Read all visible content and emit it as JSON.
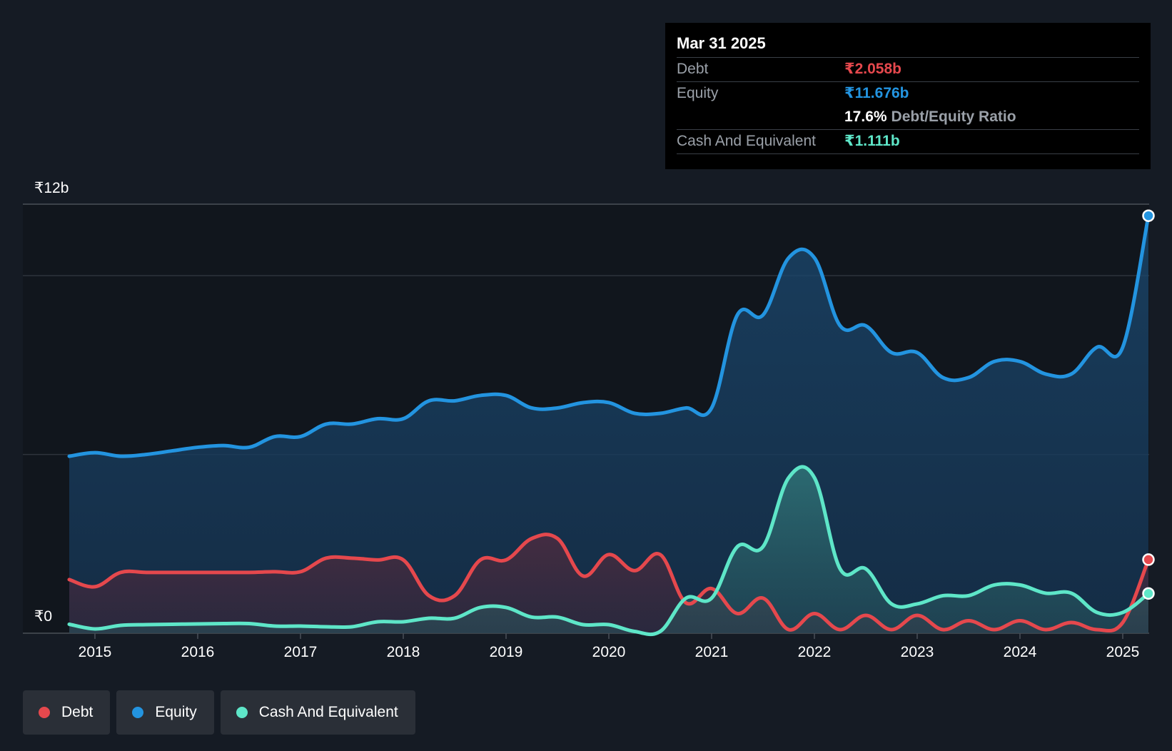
{
  "tooltip": {
    "date": "Mar 31 2025",
    "debt_label": "Debt",
    "debt_value": "₹2.058b",
    "equity_label": "Equity",
    "equity_value": "₹11.676b",
    "ratio_value": "17.6%",
    "ratio_label": "Debt/Equity Ratio",
    "cash_label": "Cash And Equivalent",
    "cash_value": "₹1.111b"
  },
  "legend": [
    {
      "label": "Debt",
      "color": "#e5484d"
    },
    {
      "label": "Equity",
      "color": "#2394e0"
    },
    {
      "label": "Cash And Equivalent",
      "color": "#5ee6c8"
    }
  ],
  "chart_data": {
    "type": "area",
    "title": "",
    "xlabel": "",
    "ylabel": "",
    "y_top_label": "₹12b",
    "y_bottom_label": "₹0",
    "ylim": [
      0,
      12
    ],
    "xlim": [
      2014.75,
      2025.25
    ],
    "x_ticks": [
      "2015",
      "2016",
      "2017",
      "2018",
      "2019",
      "2020",
      "2021",
      "2022",
      "2023",
      "2024",
      "2025"
    ],
    "series": [
      {
        "name": "Equity",
        "color": "#2394e0",
        "points": [
          [
            2014.75,
            4.95
          ],
          [
            2015.0,
            5.05
          ],
          [
            2015.25,
            4.95
          ],
          [
            2015.5,
            5.0
          ],
          [
            2015.75,
            5.1
          ],
          [
            2016.0,
            5.2
          ],
          [
            2016.25,
            5.25
          ],
          [
            2016.5,
            5.2
          ],
          [
            2016.75,
            5.5
          ],
          [
            2017.0,
            5.5
          ],
          [
            2017.25,
            5.85
          ],
          [
            2017.5,
            5.85
          ],
          [
            2017.75,
            6.0
          ],
          [
            2018.0,
            6.0
          ],
          [
            2018.25,
            6.5
          ],
          [
            2018.5,
            6.5
          ],
          [
            2018.75,
            6.65
          ],
          [
            2019.0,
            6.65
          ],
          [
            2019.25,
            6.3
          ],
          [
            2019.5,
            6.3
          ],
          [
            2019.75,
            6.45
          ],
          [
            2020.0,
            6.45
          ],
          [
            2020.25,
            6.15
          ],
          [
            2020.5,
            6.15
          ],
          [
            2020.75,
            6.3
          ],
          [
            2021.0,
            6.3
          ],
          [
            2021.25,
            8.9
          ],
          [
            2021.5,
            8.9
          ],
          [
            2021.75,
            10.5
          ],
          [
            2022.0,
            10.5
          ],
          [
            2022.25,
            8.6
          ],
          [
            2022.5,
            8.6
          ],
          [
            2022.75,
            7.85
          ],
          [
            2023.0,
            7.85
          ],
          [
            2023.25,
            7.15
          ],
          [
            2023.5,
            7.15
          ],
          [
            2023.75,
            7.6
          ],
          [
            2024.0,
            7.6
          ],
          [
            2024.25,
            7.25
          ],
          [
            2024.5,
            7.25
          ],
          [
            2024.75,
            8.0
          ],
          [
            2025.0,
            8.0
          ],
          [
            2025.25,
            11.676
          ]
        ]
      },
      {
        "name": "Debt",
        "color": "#e5484d",
        "points": [
          [
            2014.75,
            1.5
          ],
          [
            2015.0,
            1.3
          ],
          [
            2015.25,
            1.7
          ],
          [
            2015.5,
            1.7
          ],
          [
            2015.75,
            1.7
          ],
          [
            2016.0,
            1.7
          ],
          [
            2016.25,
            1.7
          ],
          [
            2016.5,
            1.7
          ],
          [
            2016.75,
            1.72
          ],
          [
            2017.0,
            1.72
          ],
          [
            2017.25,
            2.1
          ],
          [
            2017.5,
            2.1
          ],
          [
            2017.75,
            2.05
          ],
          [
            2018.0,
            2.05
          ],
          [
            2018.25,
            1.05
          ],
          [
            2018.5,
            1.05
          ],
          [
            2018.75,
            2.05
          ],
          [
            2019.0,
            2.05
          ],
          [
            2019.25,
            2.65
          ],
          [
            2019.5,
            2.65
          ],
          [
            2019.75,
            1.6
          ],
          [
            2020.0,
            2.2
          ],
          [
            2020.25,
            1.75
          ],
          [
            2020.5,
            2.2
          ],
          [
            2020.75,
            0.85
          ],
          [
            2021.0,
            1.25
          ],
          [
            2021.25,
            0.55
          ],
          [
            2021.5,
            0.98
          ],
          [
            2021.75,
            0.1
          ],
          [
            2022.0,
            0.55
          ],
          [
            2022.25,
            0.1
          ],
          [
            2022.5,
            0.5
          ],
          [
            2022.75,
            0.1
          ],
          [
            2023.0,
            0.5
          ],
          [
            2023.25,
            0.1
          ],
          [
            2023.5,
            0.35
          ],
          [
            2023.75,
            0.1
          ],
          [
            2024.0,
            0.35
          ],
          [
            2024.25,
            0.1
          ],
          [
            2024.5,
            0.3
          ],
          [
            2024.75,
            0.1
          ],
          [
            2025.0,
            0.3
          ],
          [
            2025.25,
            2.058
          ]
        ]
      },
      {
        "name": "Cash And Equivalent",
        "color": "#5ee6c8",
        "points": [
          [
            2014.75,
            0.25
          ],
          [
            2015.0,
            0.12
          ],
          [
            2015.25,
            0.22
          ],
          [
            2015.5,
            0.24
          ],
          [
            2015.75,
            0.25
          ],
          [
            2016.0,
            0.26
          ],
          [
            2016.25,
            0.27
          ],
          [
            2016.5,
            0.27
          ],
          [
            2016.75,
            0.2
          ],
          [
            2017.0,
            0.2
          ],
          [
            2017.25,
            0.18
          ],
          [
            2017.5,
            0.18
          ],
          [
            2017.75,
            0.32
          ],
          [
            2018.0,
            0.32
          ],
          [
            2018.25,
            0.42
          ],
          [
            2018.5,
            0.42
          ],
          [
            2018.75,
            0.72
          ],
          [
            2019.0,
            0.72
          ],
          [
            2019.25,
            0.45
          ],
          [
            2019.5,
            0.45
          ],
          [
            2019.75,
            0.24
          ],
          [
            2020.0,
            0.24
          ],
          [
            2020.25,
            0.05
          ],
          [
            2020.5,
            0.05
          ],
          [
            2020.75,
            0.98
          ],
          [
            2021.0,
            0.98
          ],
          [
            2021.25,
            2.42
          ],
          [
            2021.5,
            2.42
          ],
          [
            2021.75,
            4.35
          ],
          [
            2022.0,
            4.35
          ],
          [
            2022.25,
            1.8
          ],
          [
            2022.5,
            1.8
          ],
          [
            2022.75,
            0.82
          ],
          [
            2023.0,
            0.82
          ],
          [
            2023.25,
            1.05
          ],
          [
            2023.5,
            1.05
          ],
          [
            2023.75,
            1.35
          ],
          [
            2024.0,
            1.35
          ],
          [
            2024.25,
            1.12
          ],
          [
            2024.5,
            1.12
          ],
          [
            2024.75,
            0.58
          ],
          [
            2025.0,
            0.58
          ],
          [
            2025.25,
            1.111
          ]
        ]
      }
    ]
  }
}
